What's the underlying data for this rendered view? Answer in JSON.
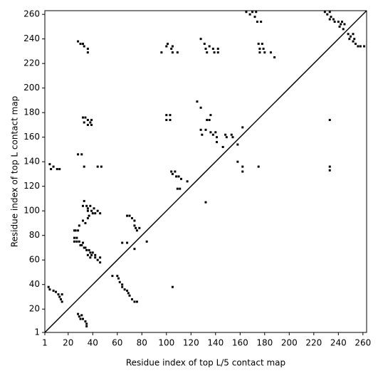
{
  "chart_data": {
    "type": "scatter",
    "xlabel": "Residue index of top L/5 contact map",
    "ylabel": "Residue index of top L contact map",
    "color": "#000000",
    "xlim": [
      1,
      263
    ],
    "ylim": [
      1,
      263
    ],
    "xticks": [
      1,
      20,
      40,
      60,
      80,
      100,
      120,
      140,
      160,
      180,
      200,
      220,
      240,
      260
    ],
    "yticks": [
      1,
      20,
      40,
      60,
      80,
      100,
      120,
      140,
      160,
      180,
      200,
      220,
      240,
      260
    ],
    "x": [
      25,
      26,
      28,
      29,
      25,
      27,
      25,
      27,
      29,
      30,
      31,
      32,
      33,
      34,
      35,
      37,
      38,
      39,
      40,
      42,
      44,
      46,
      46,
      36,
      38,
      42,
      32,
      33,
      35,
      36,
      36,
      38,
      39,
      40,
      41,
      42,
      44,
      46,
      32,
      34,
      36,
      37,
      28,
      31,
      33,
      32,
      34,
      33,
      36,
      38,
      39,
      36,
      39,
      28,
      30,
      32,
      33,
      36,
      36,
      5,
      6,
      8,
      11,
      13,
      44,
      47,
      96,
      100,
      101,
      104,
      105,
      105,
      109,
      100,
      100,
      103,
      103,
      104,
      105,
      107,
      108,
      110,
      112,
      117,
      109,
      125,
      128,
      128,
      131,
      132,
      133,
      135,
      138,
      139,
      142,
      142,
      128,
      129,
      132,
      133,
      135,
      136,
      136,
      138,
      140,
      141,
      141,
      146,
      148,
      149,
      153,
      154,
      158,
      162,
      158,
      162,
      162,
      175,
      233,
      233,
      233,
      132,
      165,
      168,
      170,
      172,
      173,
      174,
      177,
      175,
      176,
      176,
      178,
      179,
      180,
      185,
      188,
      229,
      231,
      233,
      233,
      234,
      236,
      237,
      240,
      241,
      242,
      243,
      244,
      245,
      248,
      249,
      250,
      252,
      252,
      253,
      254,
      256,
      258,
      261,
      4,
      5,
      8,
      10,
      12,
      13,
      14,
      15,
      15,
      28,
      29,
      30,
      31,
      32,
      34,
      35,
      35,
      56,
      60,
      61,
      62,
      64,
      64,
      66,
      68,
      69,
      70,
      72,
      74,
      76,
      105,
      64,
      68,
      68,
      70,
      72,
      74,
      74,
      75,
      76,
      78,
      84,
      74,
      111
    ],
    "values": [
      84,
      84,
      84,
      88,
      78,
      78,
      75,
      75,
      75,
      72,
      72,
      74,
      70,
      70,
      68,
      68,
      66,
      64,
      66,
      62,
      60,
      62,
      58,
      64,
      62,
      64,
      104,
      108,
      104,
      100,
      102,
      104,
      100,
      98,
      102,
      98,
      100,
      98,
      92,
      90,
      94,
      96,
      146,
      146,
      136,
      176,
      176,
      172,
      174,
      172,
      174,
      170,
      170,
      238,
      236,
      236,
      234,
      232,
      229,
      138,
      134,
      136,
      134,
      134,
      136,
      136,
      229,
      234,
      236,
      232,
      234,
      229,
      229,
      178,
      174,
      174,
      178,
      132,
      130,
      132,
      128,
      128,
      126,
      124,
      118,
      189,
      184,
      240,
      236,
      232,
      229,
      234,
      232,
      229,
      232,
      229,
      166,
      162,
      166,
      174,
      174,
      178,
      164,
      162,
      164,
      160,
      156,
      152,
      162,
      160,
      162,
      160,
      154,
      168,
      140,
      136,
      132,
      136,
      174,
      136,
      133,
      107,
      262,
      260,
      262,
      258,
      262,
      254,
      254,
      236,
      232,
      229,
      236,
      232,
      229,
      229,
      225,
      262,
      260,
      262,
      256,
      258,
      256,
      254,
      254,
      250,
      252,
      254,
      248,
      252,
      244,
      240,
      242,
      244,
      238,
      240,
      236,
      234,
      234,
      234,
      38,
      36,
      35,
      34,
      32,
      30,
      28,
      26,
      32,
      16,
      14,
      12,
      15,
      12,
      10,
      8,
      6,
      47,
      47,
      45,
      42,
      40,
      38,
      36,
      35,
      33,
      31,
      28,
      26,
      26,
      38,
      74,
      74,
      96,
      96,
      94,
      92,
      88,
      86,
      84,
      86,
      75,
      69,
      118
    ]
  }
}
